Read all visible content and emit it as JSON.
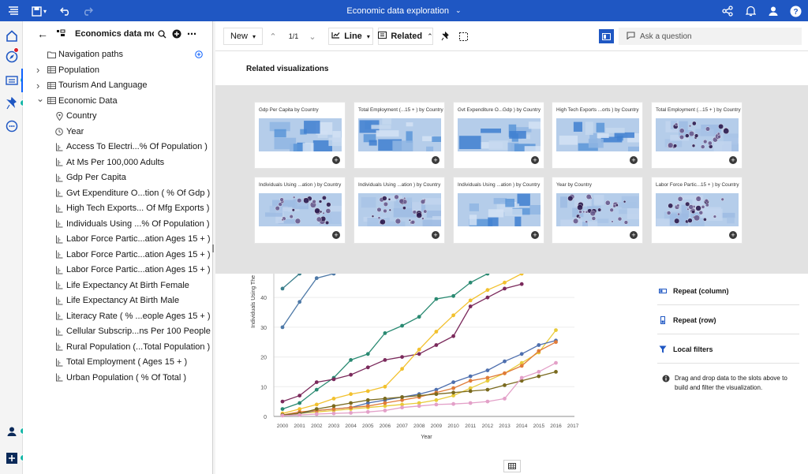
{
  "topbar": {
    "title": "Economic data exploration",
    "icons": [
      "menu-icon",
      "save-icon",
      "undo-icon",
      "redo-icon",
      "share-icon",
      "notification-icon",
      "user-icon",
      "help-icon"
    ]
  },
  "rail": {
    "items": [
      "home-icon",
      "navigate-icon",
      "data-icon",
      "pin-icon",
      "chat-icon",
      "account-icon",
      "add-icon"
    ],
    "accent": "#12b5a5"
  },
  "data_panel": {
    "title": "Economics data mo...",
    "items": [
      {
        "label": "Navigation paths",
        "type": "folder",
        "caret": ""
      },
      {
        "label": "Population",
        "type": "table",
        "caret": "right"
      },
      {
        "label": "Tourism And Language",
        "type": "table",
        "caret": "right"
      },
      {
        "label": "Economic Data",
        "type": "table",
        "caret": "down"
      },
      {
        "label": "Country",
        "type": "geo",
        "caret": ""
      },
      {
        "label": "Year",
        "type": "time",
        "caret": ""
      },
      {
        "label": "Access To Electri...% Of Population )",
        "type": "measure",
        "caret": ""
      },
      {
        "label": "At Ms Per 100,000 Adults",
        "type": "measure",
        "caret": ""
      },
      {
        "label": "Gdp Per Capita",
        "type": "measure",
        "caret": ""
      },
      {
        "label": "Gvt Expenditure O...tion ( % Of Gdp )",
        "type": "measure",
        "caret": ""
      },
      {
        "label": "High Tech Exports... Of Mfg Exports )",
        "type": "measure",
        "caret": ""
      },
      {
        "label": "Individuals Using ...% Of Population )",
        "type": "measure",
        "caret": ""
      },
      {
        "label": "Labor Force Partic...ation Ages 15 + )",
        "type": "measure",
        "caret": ""
      },
      {
        "label": "Labor Force Partic...ation Ages 15 + )",
        "type": "measure",
        "caret": ""
      },
      {
        "label": "Labor Force Partic...ation Ages 15 + )",
        "type": "measure",
        "caret": ""
      },
      {
        "label": "Life Expectancy At Birth Female",
        "type": "measure",
        "caret": ""
      },
      {
        "label": "Life Expectancy At Birth Male",
        "type": "measure",
        "caret": ""
      },
      {
        "label": "Literacy Rate ( % ...eople Ages 15 + )",
        "type": "measure",
        "caret": ""
      },
      {
        "label": "Cellular Subscrip...ns Per 100 People",
        "type": "measure",
        "caret": ""
      },
      {
        "label": "Rural Population (...Total Population )",
        "type": "measure",
        "caret": ""
      },
      {
        "label": "Total Employment ( Ages 15 + )",
        "type": "measure",
        "caret": ""
      },
      {
        "label": "Urban Population ( % Of Total )",
        "type": "measure",
        "caret": ""
      }
    ]
  },
  "toolbar": {
    "new_label": "New",
    "page_counter": "1/1",
    "chart_type": "Line",
    "related_label": "Related",
    "ask_placeholder": "Ask a question"
  },
  "related": {
    "heading": "Related visualizations",
    "cards": [
      {
        "title": "Gdp Per Capita by Country",
        "thumb": "choropleth"
      },
      {
        "title": "Total Employment (...15 + ) by Country",
        "thumb": "choropleth"
      },
      {
        "title": "Gvt Expenditure O...Gdp ) by Country",
        "thumb": "choropleth"
      },
      {
        "title": "High Tech Exports ...orts ) by Country",
        "thumb": "choropleth"
      },
      {
        "title": "Total Employment (...15 + ) by Country",
        "thumb": "points"
      },
      {
        "title": "Individuals Using ...ation ) by Country",
        "thumb": "points"
      },
      {
        "title": "Individuals Using ...ation ) by Country",
        "thumb": "points"
      },
      {
        "title": "Individuals Using ...ation ) by Country",
        "thumb": "choropleth"
      },
      {
        "title": "Year by Country",
        "thumb": "points"
      },
      {
        "title": "Labor Force Partic...15 + ) by Country",
        "thumb": "points"
      }
    ]
  },
  "properties": {
    "repeat_column": "Repeat (column)",
    "repeat_row": "Repeat (row)",
    "local_filters": "Local filters",
    "drag_note": "Drag and drop data to the slots above to build and filter the visualization."
  },
  "chart_data": {
    "type": "line",
    "xlabel": "Year",
    "ylabel": "Individuals Using The",
    "ylim": [
      0,
      48
    ],
    "yticks": [
      0,
      10,
      20,
      30,
      40
    ],
    "x": [
      "2000",
      "2001",
      "2002",
      "2003",
      "2004",
      "2005",
      "2006",
      "2007",
      "2008",
      "2009",
      "2010",
      "2011",
      "2012",
      "2013",
      "2014",
      "2015",
      "2016",
      "2017"
    ],
    "series": [
      {
        "color": "#4e79a7",
        "values": [
          30,
          38.5,
          46.5,
          48,
          null,
          null,
          null,
          null,
          null,
          null,
          null,
          null,
          null,
          null,
          null,
          null,
          null,
          null
        ]
      },
      {
        "color": "#3b7f8c",
        "values": [
          43,
          48,
          null,
          null,
          null,
          null,
          null,
          null,
          null,
          null,
          null,
          null,
          null,
          null,
          null,
          null,
          null,
          null
        ]
      },
      {
        "color": "#2a8a72",
        "values": [
          2.5,
          4.5,
          9,
          13,
          19,
          21,
          28,
          30.5,
          33.5,
          39.5,
          40.5,
          45,
          48,
          null,
          null,
          null,
          null,
          null
        ]
      },
      {
        "color": "#7b2a5c",
        "values": [
          5,
          7,
          11.5,
          12.5,
          14,
          16.5,
          19,
          20,
          21,
          24,
          27,
          37,
          40,
          43,
          44.5,
          null,
          null,
          null
        ]
      },
      {
        "color": "#f2c12e",
        "values": [
          1,
          2.5,
          4,
          6,
          7.5,
          8.5,
          10,
          16,
          22.5,
          28.5,
          34,
          39,
          42.5,
          45,
          48,
          null,
          null,
          null
        ]
      },
      {
        "color": "#e8cb3a",
        "values": [
          0.5,
          1,
          1.5,
          2,
          2.5,
          3,
          3.5,
          4,
          4.5,
          5.5,
          7,
          9.5,
          12,
          14.5,
          18,
          21.5,
          29,
          null
        ]
      },
      {
        "color": "#4e6fae",
        "values": [
          0.5,
          1,
          2,
          2.5,
          3,
          4.5,
          5.5,
          6.5,
          7.5,
          9,
          11.5,
          13.5,
          15.5,
          18.5,
          21,
          24,
          25.5,
          null
        ]
      },
      {
        "color": "#e07b39",
        "values": [
          0.5,
          1.5,
          2,
          2.5,
          3,
          3.5,
          4.5,
          5.5,
          6.5,
          8,
          9.5,
          12,
          13,
          14.5,
          17,
          22,
          25,
          null
        ]
      },
      {
        "color": "#7a6a1e",
        "values": [
          0.5,
          1,
          2.5,
          3.5,
          4.5,
          5.5,
          6,
          6.5,
          7,
          7.5,
          8,
          8.5,
          9,
          10.5,
          12,
          13.5,
          15,
          null
        ]
      },
      {
        "color": "#e3a0c8",
        "values": [
          0.3,
          0.5,
          0.8,
          1,
          1.2,
          1.5,
          2,
          3,
          3.5,
          4,
          4.2,
          4.5,
          5,
          6,
          13,
          15,
          18,
          null
        ]
      }
    ]
  }
}
